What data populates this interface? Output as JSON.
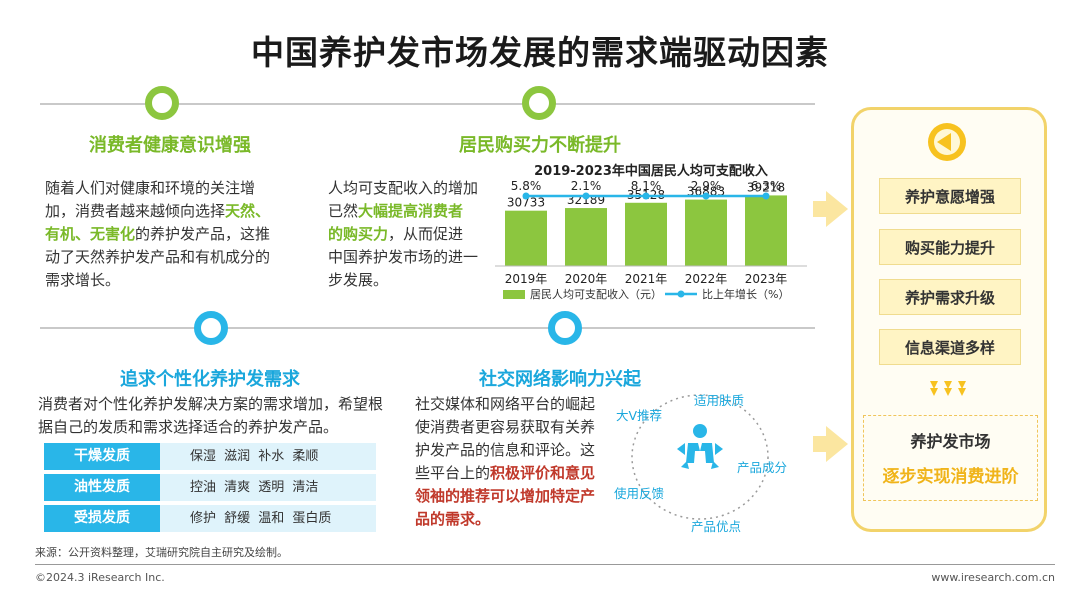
{
  "title": "中国养护发市场发展的需求端驱动因素",
  "sections": {
    "health": {
      "title": "消费者健康意识增强",
      "text_1": "随着人们对健康和环境的关注增加，消费者越来越倾向选择",
      "highlight": "天然、有机、无害化",
      "text_2": "的养护发产品，这推动了天然养护发产品和有机成分的需求增长。"
    },
    "income": {
      "title": "居民购买力不断提升",
      "text_1": "人均可支配收入的增加已然",
      "highlight": "大幅提高消费者的购买力",
      "text_2": "，从而促进中国养护发市场的进一步发展。"
    },
    "personal": {
      "title": "追求个性化养护发需求",
      "text": "消费者对个性化养护发解决方案的需求增加，希望根据自己的发质和需求选择适合的养护发产品。",
      "table": [
        {
          "type": "干燥发质",
          "attrs": "保湿 滋润 补水 柔顺"
        },
        {
          "type": "油性发质",
          "attrs": "控油 清爽 透明 清洁"
        },
        {
          "type": "受损发质",
          "attrs": "修护 舒缓 温和 蛋白质"
        }
      ]
    },
    "social": {
      "title": "社交网络影响力兴起",
      "text_1": "社交媒体和网络平台的崛起使消费者更容易获取有关养护发产品的信息和评论。这些平台上的",
      "highlight_1": "积极评价",
      "highlight_2": "和意见领袖的推荐可以增加特定产品的需求。",
      "labels": {
        "top": "适用肤质",
        "left_top": "大V推荐",
        "right": "产品成分",
        "left": "使用反馈",
        "bottom": "产品优点"
      }
    }
  },
  "chart_data": {
    "type": "bar",
    "title": "2019-2023年中国居民人均可支配收入",
    "categories": [
      "2019年",
      "2020年",
      "2021年",
      "2022年",
      "2023年"
    ],
    "series": [
      {
        "name": "居民人均可支配收入（元）",
        "type": "bar",
        "values": [
          30733,
          32189,
          35128,
          36883,
          39218
        ],
        "color": "#8cc63f"
      },
      {
        "name": "比上年增长（%）",
        "type": "line",
        "values": [
          5.8,
          2.1,
          8.1,
          2.9,
          6.3
        ],
        "labels": [
          "5.8%",
          "2.1%",
          "8.1%",
          "2.9%",
          "6.3%"
        ],
        "color": "#29b6e8"
      }
    ],
    "ylim": [
      0,
      50000
    ],
    "legend": "bottom",
    "grid": false
  },
  "right_panel": {
    "factors": [
      "养护意愿增强",
      "购买能力提升",
      "养护需求升级",
      "信息渠道多样"
    ],
    "result_line1": "养护发市场",
    "result_line2": "逐步实现消费进阶"
  },
  "footer": {
    "source": "来源：公开资料整理，艾瑞研究院自主研究及绘制。",
    "copyright": "©2024.3 iResearch Inc.",
    "website": "www.iresearch.com.cn"
  },
  "colors": {
    "green": "#8cc63f",
    "blue": "#29b6e8",
    "yellow": "#f2d36a"
  }
}
